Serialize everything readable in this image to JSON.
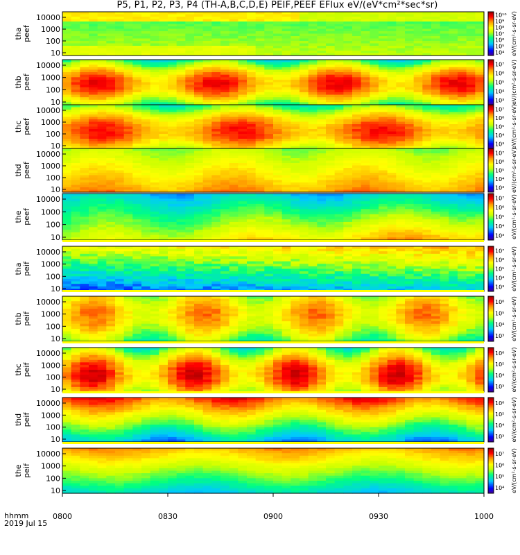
{
  "title": "P5, P1, P2, P3, P4 (TH-A,B,C,D,E) PEIF,PEEF EFlux eV/(eV*cm²*sec*sr)",
  "footer": {
    "hhmm": "hhmm",
    "date": "2019 Jul 15"
  },
  "chart_data": {
    "type": "heatmap",
    "x_ticks": [
      "0800",
      "0830",
      "0900",
      "0930",
      "1000"
    ],
    "x_range": [
      "0800",
      "1000"
    ],
    "y_ticks": [
      "10",
      "100",
      "1000",
      "10000"
    ],
    "y_scale": "log",
    "panels": [
      {
        "label_top": "tha",
        "label_bottom": "peef",
        "cbar_unit": "eV/(cm²-s-sr-eV)",
        "cbar_ticks": [
          "10⁴",
          "10⁵",
          "10⁶",
          "10⁷",
          "10⁸",
          "10⁹",
          "10¹⁰"
        ],
        "cbar_range": [
          3,
          10
        ]
      },
      {
        "label_top": "thb",
        "label_bottom": "peef",
        "cbar_unit": "eV/(cm²-s-sr-eV)",
        "cbar_ticks": [
          "10³",
          "10⁴",
          "10⁵",
          "10⁶",
          "10⁷"
        ],
        "cbar_range": [
          3,
          7.5
        ]
      },
      {
        "label_top": "thc",
        "label_bottom": "peef",
        "cbar_unit": "eV/(cm²-s-sr-eV)",
        "cbar_ticks": [
          "10³",
          "10⁴",
          "10⁵",
          "10⁶",
          "10⁷"
        ],
        "cbar_range": [
          3,
          7.5
        ]
      },
      {
        "label_top": "thd",
        "label_bottom": "peef",
        "cbar_unit": "eV/(cm²-s-sr-eV)",
        "cbar_ticks": [
          "10³",
          "10⁴",
          "10⁵",
          "10⁶",
          "10⁷"
        ],
        "cbar_range": [
          3,
          7.5
        ]
      },
      {
        "label_top": "the",
        "label_bottom": "peef",
        "cbar_unit": "eV/(cm²-s-sr-eV)",
        "cbar_ticks": [
          "10³",
          "10⁴",
          "10⁵",
          "10⁶",
          "10⁷"
        ],
        "cbar_range": [
          3,
          7.5
        ]
      },
      {
        "label_top": "tha",
        "label_bottom": "peif",
        "cbar_unit": "eV/(cm²-s-sr-eV)",
        "cbar_ticks": [
          "10³",
          "10⁴",
          "10⁵",
          "10⁶",
          "10⁷"
        ],
        "cbar_range": [
          3,
          7.5
        ]
      },
      {
        "label_top": "thb",
        "label_bottom": "peif",
        "cbar_unit": "eV/(cm²-s-sr-eV)",
        "cbar_ticks": [
          "10³",
          "10⁴",
          "10⁵",
          "10⁶"
        ],
        "cbar_range": [
          3,
          6.5
        ]
      },
      {
        "label_top": "thc",
        "label_bottom": "peif",
        "cbar_unit": "eV/(cm²-s-sr-eV)",
        "cbar_ticks": [
          "10³",
          "10⁴",
          "10⁵",
          "10⁶"
        ],
        "cbar_range": [
          3,
          6.5
        ]
      },
      {
        "label_top": "thd",
        "label_bottom": "peif",
        "cbar_unit": "eV/(cm²-s-sr-eV)",
        "cbar_ticks": [
          "10³",
          "10⁴",
          "10⁵",
          "10⁶"
        ],
        "cbar_range": [
          3,
          6.5
        ]
      },
      {
        "label_top": "the",
        "label_bottom": "peif",
        "cbar_unit": "eV/(cm²-s-sr-eV)",
        "cbar_ticks": [
          "10⁴",
          "10⁵",
          "10⁶",
          "10⁷"
        ],
        "cbar_range": [
          3.5,
          7.5
        ]
      }
    ],
    "colormap": [
      "#4b0082",
      "#0000ff",
      "#00c8ff",
      "#00ff80",
      "#c8ff00",
      "#ffff00",
      "#ff9900",
      "#ff0000",
      "#a00000"
    ],
    "grid": false,
    "legend": "colorbars-right"
  }
}
